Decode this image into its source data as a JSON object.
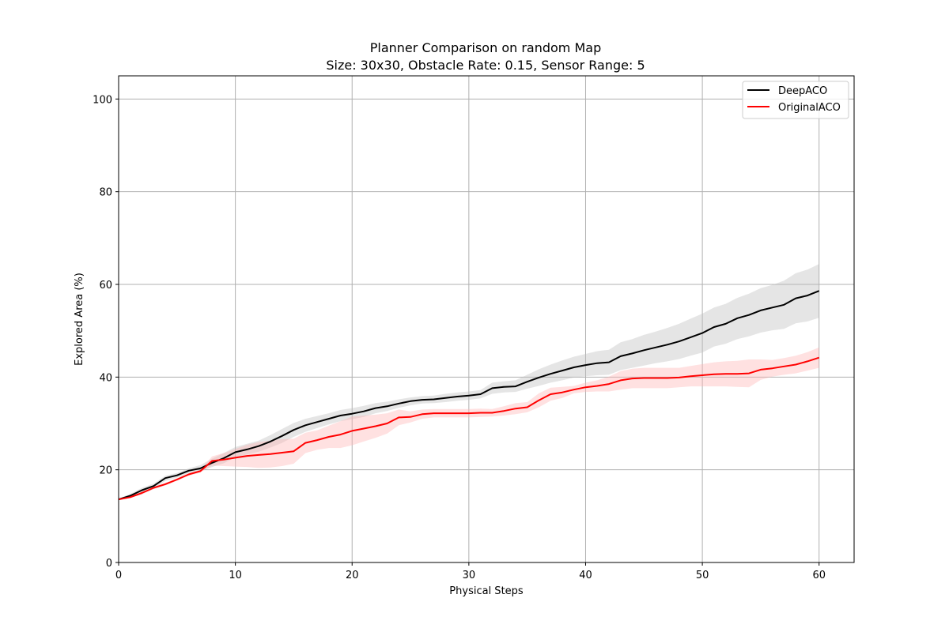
{
  "chart_data": {
    "type": "line",
    "title": "Planner Comparison on random Map",
    "subtitle": "Size: 30x30, Obstacle Rate: 0.15, Sensor Range: 5",
    "xlabel": "Physical Steps",
    "ylabel": "Explored Area (%)",
    "xlim": [
      0,
      63
    ],
    "ylim": [
      0,
      105
    ],
    "x_ticks": [
      0,
      10,
      20,
      30,
      40,
      50,
      60
    ],
    "y_ticks": [
      0,
      20,
      40,
      60,
      80,
      100
    ],
    "grid": true,
    "legend_position": "top-right",
    "x": [
      0,
      1,
      2,
      3,
      4,
      5,
      6,
      7,
      8,
      9,
      10,
      11,
      12,
      13,
      14,
      15,
      16,
      17,
      18,
      19,
      20,
      21,
      22,
      23,
      24,
      25,
      26,
      27,
      28,
      29,
      30,
      31,
      32,
      33,
      34,
      35,
      36,
      37,
      38,
      39,
      40,
      41,
      42,
      43,
      44,
      45,
      46,
      47,
      48,
      49,
      50,
      51,
      52,
      53,
      54,
      55,
      56,
      57,
      58,
      59,
      60
    ],
    "series": [
      {
        "name": "DeepACO",
        "color": "#000000",
        "band_color": "#bdbdbd",
        "values": [
          13.6,
          14.4,
          15.6,
          16.5,
          18.2,
          18.8,
          19.8,
          20.3,
          21.5,
          22.5,
          23.8,
          24.4,
          25.1,
          26.1,
          27.3,
          28.6,
          29.6,
          30.3,
          31.0,
          31.7,
          32.1,
          32.6,
          33.3,
          33.7,
          34.3,
          34.8,
          35.1,
          35.2,
          35.5,
          35.8,
          36.0,
          36.3,
          37.6,
          37.9,
          38.0,
          39.0,
          39.9,
          40.7,
          41.4,
          42.1,
          42.6,
          43.0,
          43.2,
          44.5,
          45.1,
          45.8,
          46.4,
          47.0,
          47.7,
          48.6,
          49.5,
          50.8,
          51.5,
          52.7,
          53.4,
          54.4,
          55.0,
          55.6,
          57.0,
          57.6,
          58.6
        ],
        "band_lower": [
          13.5,
          14.2,
          15.2,
          16.0,
          17.6,
          18.3,
          19.3,
          19.7,
          20.6,
          21.4,
          22.7,
          23.3,
          23.9,
          24.8,
          25.8,
          27.1,
          28.2,
          29.0,
          29.8,
          30.5,
          30.9,
          31.4,
          32.2,
          32.7,
          33.4,
          33.9,
          34.3,
          34.4,
          34.6,
          34.9,
          35.1,
          35.4,
          36.4,
          36.7,
          36.8,
          37.5,
          38.1,
          38.8,
          39.3,
          39.9,
          40.2,
          40.4,
          40.5,
          41.5,
          42.0,
          42.5,
          43.0,
          43.4,
          43.9,
          44.6,
          45.3,
          46.6,
          47.2,
          48.2,
          48.8,
          49.6,
          50.1,
          50.4,
          51.6,
          52.0,
          52.8
        ],
        "band_upper": [
          13.8,
          14.8,
          16.1,
          17.0,
          18.7,
          19.3,
          20.3,
          21.0,
          22.4,
          23.6,
          24.9,
          25.6,
          26.3,
          27.5,
          28.8,
          30.1,
          31.0,
          31.6,
          32.2,
          32.9,
          33.3,
          33.8,
          34.4,
          34.7,
          35.2,
          35.6,
          35.9,
          36.0,
          36.4,
          36.7,
          36.9,
          37.2,
          38.8,
          39.1,
          39.3,
          40.5,
          41.7,
          42.7,
          43.6,
          44.4,
          45.0,
          45.6,
          45.9,
          47.5,
          48.2,
          49.1,
          49.8,
          50.6,
          51.5,
          52.6,
          53.7,
          55.0,
          55.8,
          57.1,
          58.0,
          59.2,
          59.9,
          60.8,
          62.4,
          63.2,
          64.4
        ]
      },
      {
        "name": "OriginalACO",
        "color": "#ff0000",
        "band_color": "#ffb3b3",
        "values": [
          13.6,
          14.1,
          15.0,
          16.1,
          16.9,
          17.9,
          19.0,
          19.7,
          21.9,
          22.2,
          22.6,
          23.0,
          23.2,
          23.4,
          23.7,
          24.0,
          25.8,
          26.4,
          27.1,
          27.6,
          28.4,
          28.9,
          29.4,
          30.0,
          31.3,
          31.4,
          32.0,
          32.2,
          32.2,
          32.2,
          32.2,
          32.3,
          32.3,
          32.7,
          33.2,
          33.5,
          35.0,
          36.3,
          36.7,
          37.3,
          37.8,
          38.1,
          38.5,
          39.3,
          39.7,
          39.8,
          39.8,
          39.8,
          39.9,
          40.2,
          40.4,
          40.6,
          40.7,
          40.7,
          40.8,
          41.6,
          41.9,
          42.3,
          42.7,
          43.4,
          44.2
        ],
        "band_lower": [
          13.5,
          13.9,
          14.7,
          15.8,
          16.6,
          17.6,
          18.7,
          19.4,
          20.9,
          20.8,
          20.7,
          20.6,
          20.4,
          20.5,
          20.8,
          21.3,
          23.6,
          24.3,
          24.7,
          24.7,
          25.3,
          26.1,
          26.9,
          27.8,
          29.6,
          30.2,
          31.0,
          31.3,
          31.3,
          31.3,
          31.3,
          31.4,
          31.5,
          31.7,
          32.0,
          32.4,
          33.5,
          34.9,
          35.5,
          36.5,
          36.8,
          36.9,
          36.9,
          37.3,
          37.6,
          37.6,
          37.6,
          37.6,
          37.8,
          38.0,
          38.0,
          38.0,
          38.0,
          37.9,
          37.8,
          39.4,
          40.1,
          40.5,
          40.8,
          41.4,
          42.0
        ],
        "band_upper": [
          13.7,
          14.3,
          15.3,
          16.4,
          17.2,
          18.2,
          19.3,
          20.0,
          22.9,
          23.6,
          24.5,
          25.4,
          26.0,
          26.3,
          26.6,
          26.7,
          28.0,
          28.5,
          29.5,
          30.5,
          31.5,
          31.7,
          31.9,
          32.2,
          33.0,
          32.6,
          33.0,
          33.1,
          33.1,
          33.1,
          33.1,
          33.2,
          33.1,
          33.7,
          34.4,
          34.6,
          36.5,
          37.7,
          37.9,
          38.1,
          38.8,
          39.3,
          40.1,
          41.3,
          41.8,
          42.0,
          42.0,
          42.0,
          42.0,
          42.4,
          42.8,
          43.2,
          43.4,
          43.5,
          43.8,
          43.8,
          43.7,
          44.1,
          44.6,
          45.4,
          46.4
        ]
      }
    ]
  }
}
